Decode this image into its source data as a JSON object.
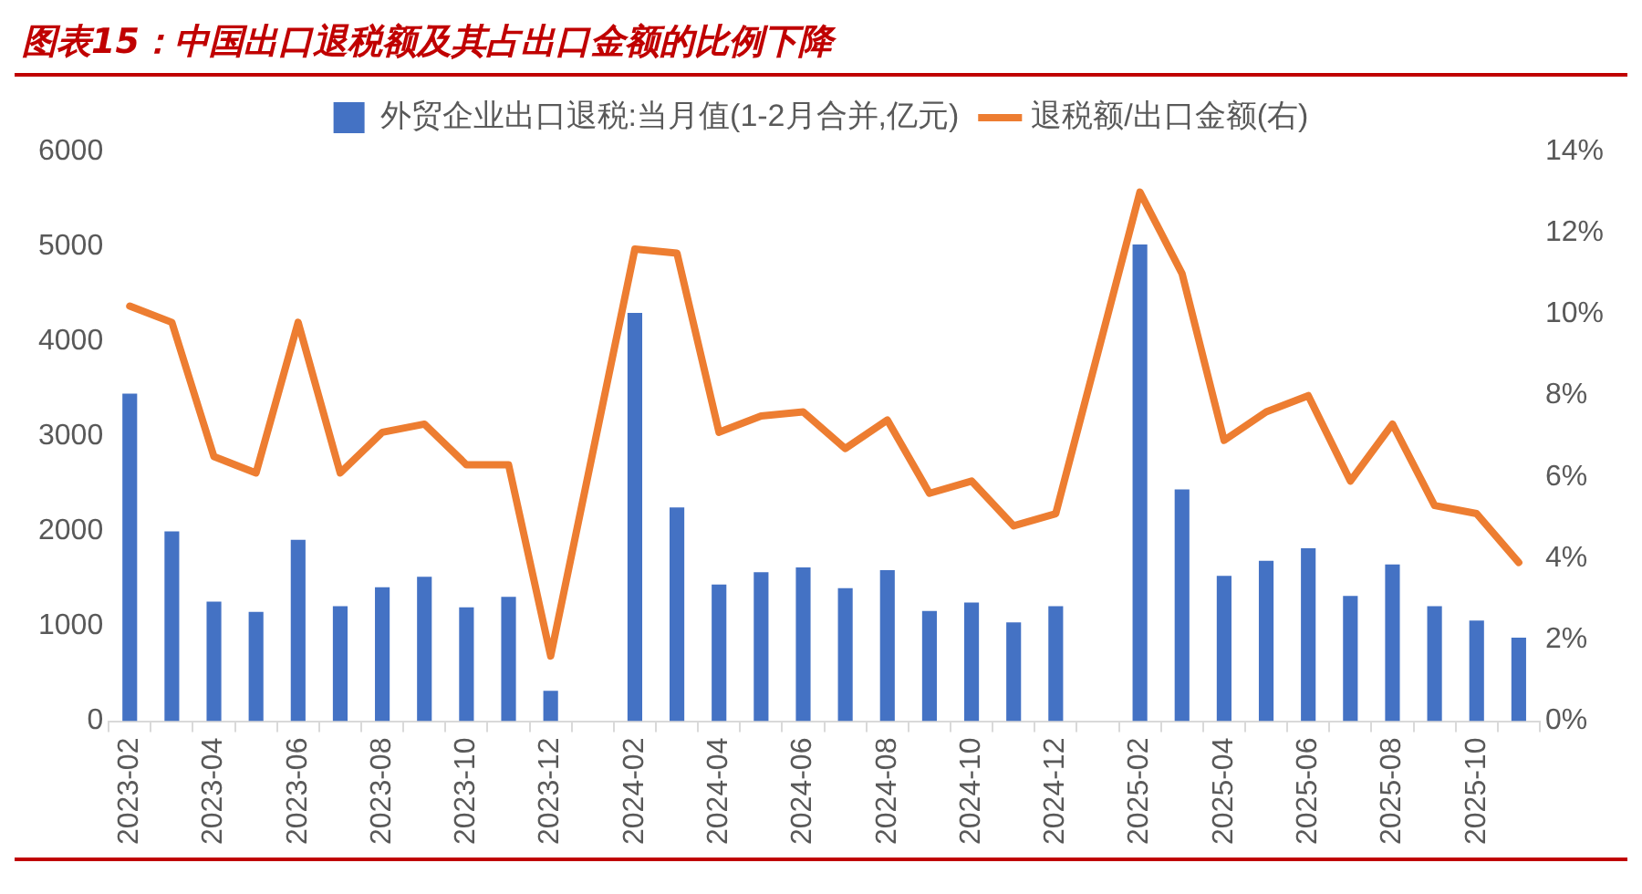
{
  "chart_data": {
    "type": "bar",
    "title": "图表15：中国出口退税额及其占出口金额的比例下降",
    "categories": [
      "2023-02",
      null,
      "2023-04",
      null,
      "2023-06",
      null,
      "2023-08",
      null,
      "2023-10",
      null,
      "2023-12",
      null,
      "2024-02",
      null,
      "2024-04",
      null,
      "2024-06",
      null,
      "2024-08",
      null,
      "2024-10",
      null,
      "2024-12",
      null,
      "2025-02",
      null,
      "2025-04",
      null,
      "2025-06",
      null,
      "2025-08",
      null,
      "2025-10",
      null
    ],
    "series": [
      {
        "name": "外贸企业出口退税:当月值(1-2月合并,亿元)",
        "color": "#4472c4",
        "values": [
          3450,
          2000,
          1260,
          1150,
          1910,
          1210,
          1410,
          1520,
          1200,
          1310,
          320,
          null,
          4300,
          2250,
          1440,
          1570,
          1620,
          1400,
          1590,
          1160,
          1250,
          1040,
          1210,
          null,
          5020,
          2440,
          1530,
          1690,
          1820,
          1320,
          1650,
          1210,
          1060,
          880
        ]
      },
      {
        "name": "退税额/出口金额(右)",
        "type": "line",
        "axis": "y2",
        "color": "#ed7d31",
        "values": [
          10.2,
          9.8,
          6.5,
          6.1,
          9.8,
          6.1,
          7.1,
          7.3,
          6.3,
          6.3,
          1.6,
          null,
          11.6,
          11.5,
          7.1,
          7.5,
          7.6,
          6.7,
          7.4,
          5.6,
          5.9,
          4.8,
          5.1,
          null,
          13.0,
          11.0,
          6.9,
          7.6,
          8.0,
          5.9,
          7.3,
          5.3,
          5.1,
          3.9
        ]
      }
    ],
    "ylim": [
      0,
      6000
    ],
    "yticks": [
      0,
      1000,
      2000,
      3000,
      4000,
      5000,
      6000
    ],
    "y2lim": [
      0,
      14
    ],
    "y2ticks": [
      {
        "value": 0,
        "label": "0%"
      },
      {
        "value": 2,
        "label": "2%"
      },
      {
        "value": 4,
        "label": "4%"
      },
      {
        "value": 6,
        "label": "6%"
      },
      {
        "value": 8,
        "label": "8%"
      },
      {
        "value": 10,
        "label": "10%"
      },
      {
        "value": 12,
        "label": "12%"
      },
      {
        "value": 14,
        "label": "14%"
      }
    ],
    "grid": false,
    "legend": "top",
    "marker": "none"
  }
}
